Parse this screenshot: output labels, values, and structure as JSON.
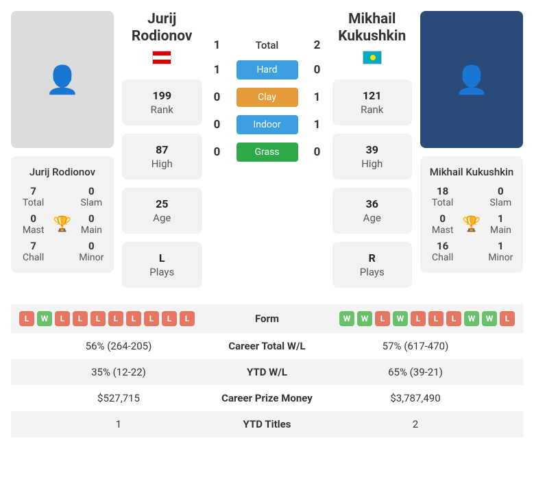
{
  "colors": {
    "win": "#6abf69",
    "loss": "#e57762",
    "hard": "#3ca0e0",
    "clay": "#e49b3a",
    "indoor": "#3ca0e0",
    "grass": "#2fa84a"
  },
  "player1": {
    "name_line1": "Jurij",
    "name_line2": "Rodionov",
    "full_name": "Jurij Rodionov",
    "flag_class": "flag-at",
    "rank": "199",
    "rank_lbl": "Rank",
    "high": "87",
    "high_lbl": "High",
    "age": "25",
    "age_lbl": "Age",
    "plays": "L",
    "plays_lbl": "Plays",
    "titles": {
      "total": {
        "val": "7",
        "lbl": "Total"
      },
      "slam": {
        "val": "0",
        "lbl": "Slam"
      },
      "mast": {
        "val": "0",
        "lbl": "Mast"
      },
      "main": {
        "val": "0",
        "lbl": "Main"
      },
      "chall": {
        "val": "7",
        "lbl": "Chall"
      },
      "minor": {
        "val": "0",
        "lbl": "Minor"
      }
    },
    "form": [
      "L",
      "W",
      "L",
      "L",
      "L",
      "L",
      "L",
      "L",
      "L",
      "L"
    ],
    "career_total": "56% (264-205)",
    "ytd_wl": "35% (12-22)",
    "prize": "$527,715",
    "ytd_titles": "1"
  },
  "player2": {
    "name_line1": "Mikhail",
    "name_line2": "Kukushkin",
    "full_name": "Mikhail Kukushkin",
    "flag_class": "flag-kz",
    "rank": "121",
    "rank_lbl": "Rank",
    "high": "39",
    "high_lbl": "High",
    "age": "36",
    "age_lbl": "Age",
    "plays": "R",
    "plays_lbl": "Plays",
    "titles": {
      "total": {
        "val": "18",
        "lbl": "Total"
      },
      "slam": {
        "val": "0",
        "lbl": "Slam"
      },
      "mast": {
        "val": "0",
        "lbl": "Mast"
      },
      "main": {
        "val": "1",
        "lbl": "Main"
      },
      "chall": {
        "val": "16",
        "lbl": "Chall"
      },
      "minor": {
        "val": "1",
        "lbl": "Minor"
      }
    },
    "form": [
      "W",
      "W",
      "L",
      "W",
      "L",
      "L",
      "L",
      "W",
      "W",
      "L"
    ],
    "career_total": "57% (617-470)",
    "ytd_wl": "65% (39-21)",
    "prize": "$3,787,490",
    "ytd_titles": "2"
  },
  "h2h": {
    "total": {
      "p1": "1",
      "p2": "2",
      "label": "Total"
    },
    "hard": {
      "p1": "1",
      "p2": "0",
      "label": "Hard"
    },
    "clay": {
      "p1": "0",
      "p2": "1",
      "label": "Clay"
    },
    "indoor": {
      "p1": "0",
      "p2": "1",
      "label": "Indoor"
    },
    "grass": {
      "p1": "0",
      "p2": "0",
      "label": "Grass"
    }
  },
  "table": {
    "form": "Form",
    "career_total": "Career Total W/L",
    "ytd_wl": "YTD W/L",
    "prize": "Career Prize Money",
    "ytd_titles": "YTD Titles"
  }
}
